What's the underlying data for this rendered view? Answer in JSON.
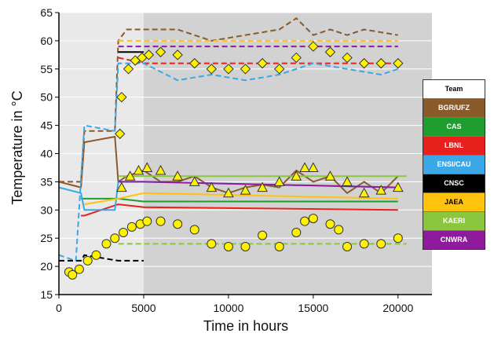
{
  "chart_data": {
    "type": "line",
    "title": "",
    "xlabel": "Time in hours",
    "ylabel": "Temperature in °C",
    "xlim": [
      0,
      22000
    ],
    "ylim": [
      15,
      65
    ],
    "x_ticks": [
      0,
      5000,
      10000,
      15000,
      20000
    ],
    "y_ticks": [
      15,
      20,
      25,
      30,
      35,
      40,
      45,
      50,
      55,
      60,
      65
    ],
    "x_tick_labels": [
      "0",
      "5000",
      "10000",
      "15000",
      "20000"
    ],
    "y_tick_labels": [
      "15",
      "20",
      "25",
      "30",
      "35",
      "40",
      "45",
      "50",
      "55",
      "60",
      "65"
    ],
    "grid": "horizontal",
    "background_regions": [
      {
        "x_start": 0,
        "x_end": 5000,
        "color": "#e9e9e9"
      },
      {
        "x_start": 5000,
        "x_end": 22000,
        "color": "#d2d2d2"
      }
    ],
    "legend": {
      "placement": "right",
      "title": "Team",
      "entries": [
        {
          "label": "BGR/UFZ",
          "color": "#8B5A2B",
          "text_color": "#ffffff"
        },
        {
          "label": "CAS",
          "color": "#1E9E2E",
          "text_color": "#ffffff"
        },
        {
          "label": "LBNL",
          "color": "#E8211E",
          "text_color": "#ffffff"
        },
        {
          "label": "ENSI/CAU",
          "color": "#3AA7E6",
          "text_color": "#ffffff"
        },
        {
          "label": "CNSC",
          "color": "#000000",
          "text_color": "#ffffff"
        },
        {
          "label": "JAEA",
          "color": "#FFC20E",
          "text_color": "#000000"
        },
        {
          "label": "KAERI",
          "color": "#8CC63F",
          "text_color": "#ffffff"
        },
        {
          "label": "CNWRA",
          "color": "#8E1A9E",
          "text_color": "#ffffff"
        }
      ]
    },
    "measured": [
      {
        "marker": "diamond",
        "color": "#FFF200",
        "x": [
          3600,
          3700,
          4100,
          4500,
          4900,
          5300,
          6000,
          7000,
          8000,
          9000,
          10000,
          11000,
          12000,
          13000,
          14000,
          15000,
          16000,
          17000,
          18000,
          19000,
          20000
        ],
        "y": [
          43.5,
          50,
          55,
          56.5,
          57,
          57.5,
          58,
          57.5,
          56,
          55,
          55,
          55,
          56,
          55,
          57,
          59,
          58,
          57,
          56,
          56,
          56
        ]
      },
      {
        "marker": "triangle",
        "color": "#FFF200",
        "x": [
          3700,
          4200,
          4700,
          5200,
          6000,
          7000,
          8000,
          9000,
          10000,
          11000,
          12000,
          13000,
          14000,
          14500,
          15000,
          16000,
          17000,
          18000,
          19000,
          20000
        ],
        "y": [
          34,
          36,
          37,
          37.5,
          37,
          36,
          35,
          34,
          33,
          33.5,
          34,
          35,
          36,
          37.5,
          37.5,
          36,
          35,
          33,
          33.5,
          34
        ]
      },
      {
        "marker": "circle",
        "color": "#FFF200",
        "x": [
          600,
          800,
          1200,
          1700,
          2200,
          2800,
          3300,
          3800,
          4300,
          4800,
          5200,
          6000,
          7000,
          8000,
          9000,
          10000,
          11000,
          12000,
          13000,
          14000,
          14500,
          15000,
          16000,
          16500,
          17000,
          18000,
          19000,
          20000
        ],
        "y": [
          19,
          18.5,
          19.5,
          21,
          22,
          24,
          25,
          26,
          27,
          27.5,
          28,
          28,
          27.5,
          26.5,
          24,
          23.5,
          23.5,
          25.5,
          23.5,
          26,
          28,
          28.5,
          27.5,
          26.5,
          23.5,
          24,
          24,
          25
        ]
      }
    ],
    "series": [
      {
        "name": "BGR/UFZ",
        "style": "dashed",
        "color": "#8B5A2B",
        "x": [
          0,
          1300,
          1500,
          3300,
          3500,
          4000,
          5000,
          7000,
          9000,
          11000,
          13000,
          14000,
          15000,
          16000,
          17000,
          18000,
          20000
        ],
        "y": [
          35,
          35,
          44,
          44,
          60,
          62,
          62,
          62,
          60,
          61,
          62,
          64,
          61,
          62,
          61,
          62,
          61
        ]
      },
      {
        "name": "BGR/UFZ",
        "style": "solid",
        "color": "#8B5A2B",
        "x": [
          0,
          1300,
          1500,
          3300,
          3500,
          4000,
          5000,
          6000,
          7000,
          8000,
          9000,
          10000,
          11000,
          12000,
          13000,
          14000,
          15000,
          16000,
          17000,
          18000,
          19000,
          20000
        ],
        "y": [
          35,
          34,
          42,
          43,
          35,
          36,
          37,
          35,
          35,
          36,
          34,
          33,
          34,
          34.5,
          34,
          37,
          35,
          36,
          33,
          35,
          33,
          36
        ]
      },
      {
        "name": "CAS",
        "style": "solid",
        "color": "#1E9E2E",
        "x": [
          1300,
          1500,
          3500,
          5000,
          20000
        ],
        "y": [
          32,
          32,
          32,
          31.5,
          31.5
        ]
      },
      {
        "name": "LBNL",
        "style": "solid",
        "color": "#E8211E",
        "x": [
          1300,
          1500,
          3500,
          5000,
          20000
        ],
        "y": [
          29,
          29,
          31,
          30.5,
          30
        ]
      },
      {
        "name": "LBNL",
        "style": "dashed",
        "color": "#E8211E",
        "x": [
          3500,
          5000,
          20000
        ],
        "y": [
          57,
          56,
          56
        ]
      },
      {
        "name": "ENSI/CAU",
        "style": "dashed",
        "color": "#3AA7E6",
        "x": [
          0,
          1000,
          1500,
          3300,
          3500,
          5000,
          7000,
          9000,
          11000,
          13000,
          15000,
          17000,
          19000,
          20000
        ],
        "y": [
          22,
          21,
          45,
          44,
          56,
          56,
          53,
          54,
          53,
          54,
          56,
          55,
          54,
          55
        ]
      },
      {
        "name": "ENSI/CAU",
        "style": "solid",
        "color": "#3AA7E6",
        "x": [
          0,
          1300,
          1500,
          3300,
          3500,
          5000,
          20000
        ],
        "y": [
          34,
          33,
          30,
          30,
          35,
          35,
          34
        ]
      },
      {
        "name": "CNSC",
        "style": "dashed",
        "color": "#000000",
        "x": [
          0,
          1300,
          1500,
          3500,
          5000
        ],
        "y": [
          21,
          21,
          22,
          21,
          21
        ]
      },
      {
        "name": "CNSC",
        "style": "solid",
        "color": "#000000",
        "x": [
          3500,
          5000
        ],
        "y": [
          58,
          58
        ]
      },
      {
        "name": "JAEA",
        "style": "dashed",
        "color": "#FFC20E",
        "x": [
          3500,
          5000,
          20000
        ],
        "y": [
          60,
          60,
          60
        ]
      },
      {
        "name": "JAEA",
        "style": "solid",
        "color": "#FFC20E",
        "x": [
          1500,
          3500,
          5000,
          20000
        ],
        "y": [
          31,
          32,
          33,
          32
        ]
      },
      {
        "name": "KAERI",
        "style": "solid",
        "color": "#8CC63F",
        "x": [
          3500,
          5000,
          20500
        ],
        "y": [
          36,
          36,
          36
        ]
      },
      {
        "name": "KAERI",
        "style": "dashed",
        "color": "#8CC63F",
        "x": [
          3500,
          5000,
          20500
        ],
        "y": [
          24,
          24,
          24
        ]
      },
      {
        "name": "CNWRA",
        "style": "solid",
        "color": "#8E1A9E",
        "x": [
          3500,
          5000,
          20000
        ],
        "y": [
          35,
          35,
          34
        ]
      },
      {
        "name": "CNWRA",
        "style": "dashed",
        "color": "#8E1A9E",
        "x": [
          3500,
          5000,
          20000
        ],
        "y": [
          59,
          59,
          59
        ]
      }
    ]
  }
}
